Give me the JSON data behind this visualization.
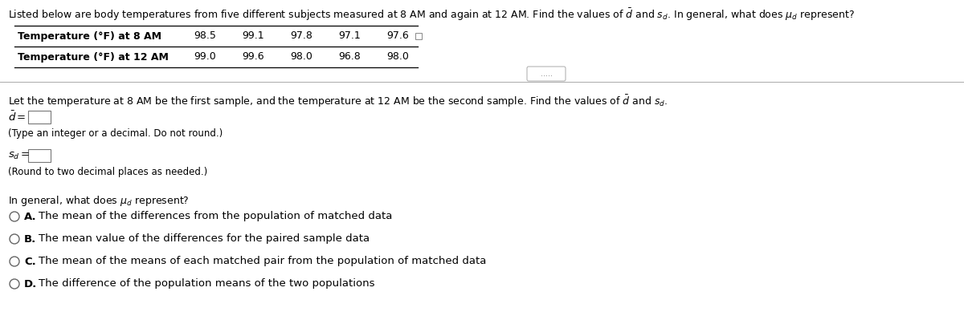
{
  "title": "Listed below are body temperatures from five different subjects measured at 8 AM and again at 12 AM. Find the values of $\\bar{d}$ and $s_d$. In general, what does $\\mu_d$ represent?",
  "row1_label": "Temperature (°F) at 8 AM",
  "row2_label": "Temperature (°F) at 12 AM",
  "row1_vals": [
    98.5,
    99.1,
    97.8,
    97.1,
    97.6
  ],
  "row2_vals": [
    99.0,
    99.6,
    98.0,
    96.8,
    98.0
  ],
  "instruction": "Let the temperature at 8 AM be the first sample, and the temperature at 12 AM be the second sample. Find the values of $\\bar{d}$ and $s_d$.",
  "dbar_label": "$\\bar{d}=$",
  "dbar_note": "(Type an integer or a decimal. Do not round.)",
  "sd_label": "$s_d =$",
  "sd_note": "(Round to two decimal places as needed.)",
  "question": "In general, what does $\\mu_d$ represent?",
  "option_letters": [
    "A.",
    "B.",
    "C.",
    "D."
  ],
  "option_texts": [
    "The mean of the differences from the population of matched data",
    "The mean value of the differences for the paired sample data",
    "The mean of the means of each matched pair from the population of matched data",
    "The difference of the population means of the two populations"
  ],
  "bg_color": "#ffffff",
  "text_color": "#000000",
  "light_gray": "#d0d0d0",
  "radio_color": "#666666",
  "title_fontsize": 9.0,
  "table_label_fontsize": 9.0,
  "table_val_fontsize": 9.0,
  "body_fontsize": 9.0,
  "label_fontsize": 9.5,
  "option_fontsize": 9.5
}
